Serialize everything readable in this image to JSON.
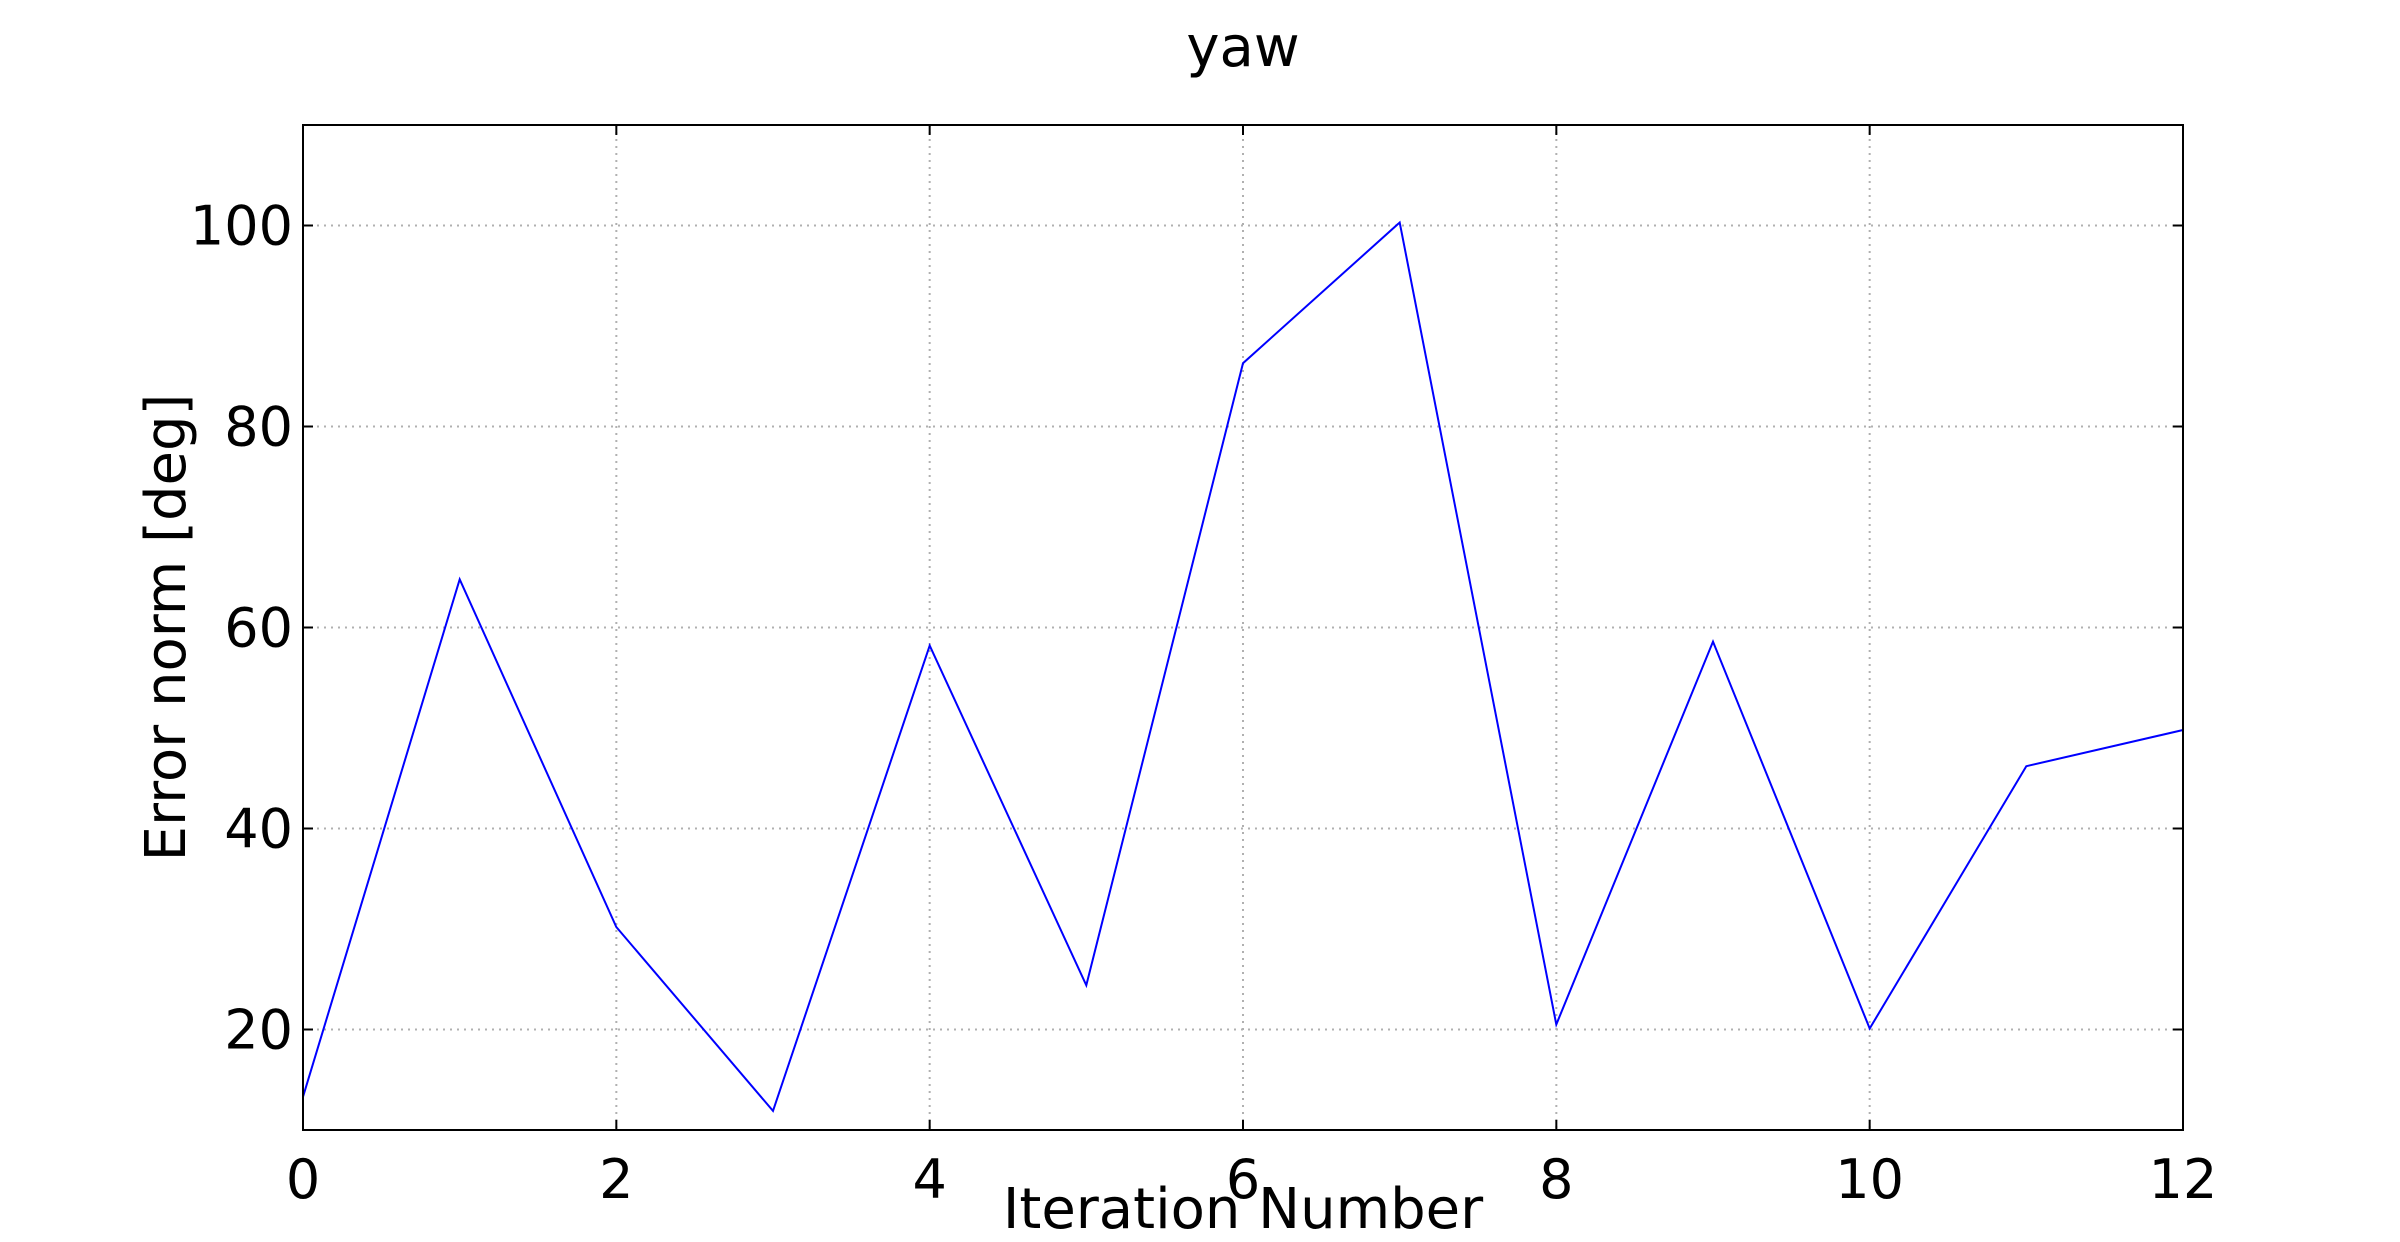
{
  "chart_data": {
    "type": "line",
    "title": "yaw",
    "xlabel": "Iteration Number",
    "ylabel": "Error norm [deg]",
    "xlim": [
      0,
      12
    ],
    "ylim": [
      10,
      110
    ],
    "xticks": [
      0,
      2,
      4,
      6,
      8,
      10,
      12
    ],
    "yticks": [
      20,
      40,
      60,
      80,
      100
    ],
    "grid": true,
    "series": [
      {
        "color": "#0000ff",
        "x": [
          0,
          1,
          2,
          3,
          4,
          5,
          6,
          7,
          8,
          9,
          10,
          11,
          12
        ],
        "y": [
          13.3,
          64.8,
          30.2,
          11.9,
          58.2,
          24.4,
          86.3,
          100.3,
          20.5,
          58.6,
          20.1,
          46.2,
          49.8
        ]
      }
    ]
  }
}
